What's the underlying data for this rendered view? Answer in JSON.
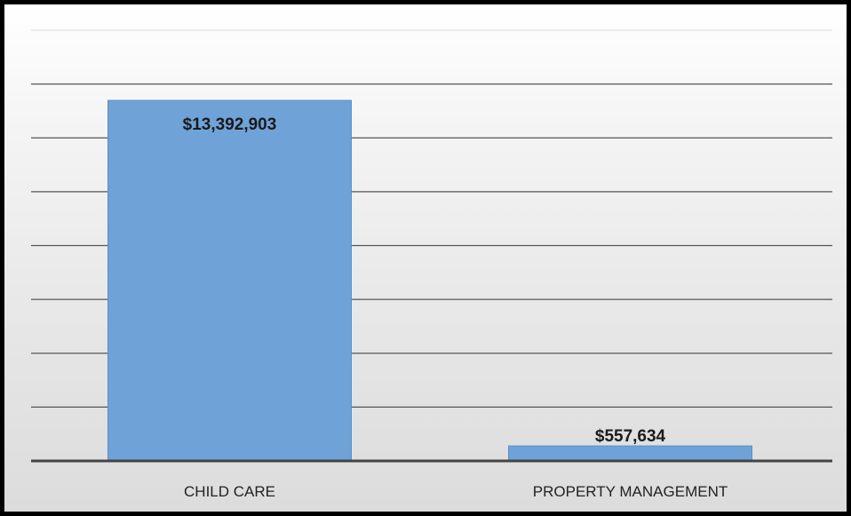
{
  "chart_data": {
    "type": "bar",
    "categories": [
      "CHILD CARE",
      "PROPERTY MANAGEMENT"
    ],
    "values": [
      13392903,
      557634
    ],
    "data_labels": [
      "$13,392,903",
      "$557,634"
    ],
    "title": "",
    "xlabel": "",
    "ylabel": "",
    "ylim": [
      0,
      16000000
    ],
    "grid": true,
    "legend": "none",
    "colors": {
      "bar": "#6fa3d8",
      "bar_edge": "#5b8fc7",
      "gridline": "#555555",
      "axis": "#444444"
    }
  }
}
